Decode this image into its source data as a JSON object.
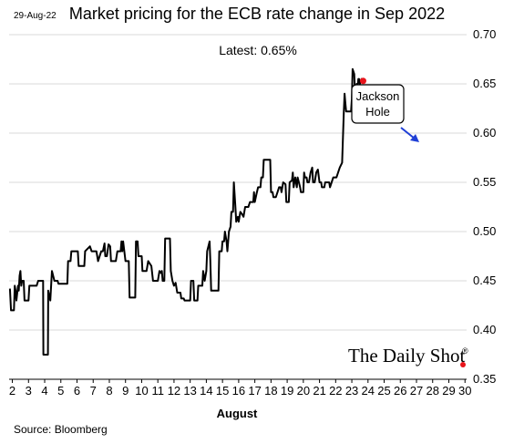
{
  "header": {
    "date": "29-Aug-22",
    "title": "Market pricing for the ECB rate change in Sep 2022"
  },
  "annotations": {
    "latest": "Latest:  0.65%",
    "callout_line1": "Jackson",
    "callout_line2": "Hole"
  },
  "branding": {
    "name": "The Daily Shot",
    "mark": "®"
  },
  "footer": {
    "source": "Source: Bloomberg"
  },
  "colors": {
    "line": "#000000",
    "marker": "#e8141b",
    "arrow": "#1f3fd6",
    "grid": "#d9d9d9"
  },
  "chart_data": {
    "type": "line",
    "xlabel": "August",
    "x_ticks": [
      2,
      3,
      4,
      5,
      6,
      7,
      8,
      9,
      10,
      11,
      12,
      13,
      14,
      15,
      16,
      17,
      18,
      19,
      20,
      21,
      22,
      23,
      24,
      25,
      26,
      27,
      28,
      29,
      30
    ],
    "xlim": [
      1.8,
      30.1
    ],
    "y_ticks": [
      0.35,
      0.4,
      0.45,
      0.5,
      0.55,
      0.6,
      0.65,
      0.7
    ],
    "ylim": [
      0.35,
      0.7
    ],
    "y_axis_side": "right",
    "grid": "horizontal",
    "series": [
      {
        "points": [
          [
            1.85,
            0.442
          ],
          [
            1.92,
            0.42
          ],
          [
            2.1,
            0.42
          ],
          [
            2.15,
            0.445
          ],
          [
            2.2,
            0.44
          ],
          [
            2.25,
            0.43
          ],
          [
            2.35,
            0.445
          ],
          [
            2.4,
            0.44
          ],
          [
            2.45,
            0.455
          ],
          [
            2.5,
            0.46
          ],
          [
            2.55,
            0.445
          ],
          [
            2.6,
            0.45
          ],
          [
            2.7,
            0.45
          ],
          [
            2.75,
            0.43
          ],
          [
            3.0,
            0.43
          ],
          [
            3.05,
            0.445
          ],
          [
            3.5,
            0.445
          ],
          [
            3.6,
            0.45
          ],
          [
            3.9,
            0.45
          ],
          [
            3.92,
            0.375
          ],
          [
            4.2,
            0.375
          ],
          [
            4.22,
            0.44
          ],
          [
            4.35,
            0.43
          ],
          [
            4.45,
            0.46
          ],
          [
            4.6,
            0.45
          ],
          [
            4.8,
            0.45
          ],
          [
            4.85,
            0.447
          ],
          [
            5.4,
            0.447
          ],
          [
            5.45,
            0.47
          ],
          [
            5.6,
            0.47
          ],
          [
            5.65,
            0.48
          ],
          [
            6.05,
            0.48
          ],
          [
            6.1,
            0.465
          ],
          [
            6.45,
            0.465
          ],
          [
            6.5,
            0.48
          ],
          [
            6.8,
            0.485
          ],
          [
            6.9,
            0.48
          ],
          [
            7.2,
            0.48
          ],
          [
            7.3,
            0.47
          ],
          [
            7.5,
            0.48
          ],
          [
            7.6,
            0.48
          ],
          [
            7.7,
            0.488
          ],
          [
            7.75,
            0.475
          ],
          [
            7.85,
            0.475
          ],
          [
            7.95,
            0.487
          ],
          [
            8.05,
            0.485
          ],
          [
            8.1,
            0.47
          ],
          [
            8.4,
            0.47
          ],
          [
            8.5,
            0.48
          ],
          [
            8.7,
            0.48
          ],
          [
            8.75,
            0.49
          ],
          [
            8.8,
            0.48
          ],
          [
            8.85,
            0.49
          ],
          [
            9.0,
            0.47
          ],
          [
            9.2,
            0.47
          ],
          [
            9.25,
            0.433
          ],
          [
            9.6,
            0.433
          ],
          [
            9.65,
            0.49
          ],
          [
            9.75,
            0.49
          ],
          [
            9.8,
            0.475
          ],
          [
            10.0,
            0.475
          ],
          [
            10.05,
            0.46
          ],
          [
            10.3,
            0.46
          ],
          [
            10.4,
            0.47
          ],
          [
            10.6,
            0.465
          ],
          [
            10.7,
            0.45
          ],
          [
            11.0,
            0.45
          ],
          [
            11.1,
            0.46
          ],
          [
            11.2,
            0.458
          ],
          [
            11.25,
            0.46
          ],
          [
            11.3,
            0.45
          ],
          [
            11.4,
            0.45
          ],
          [
            11.45,
            0.493
          ],
          [
            11.75,
            0.493
          ],
          [
            11.8,
            0.46
          ],
          [
            11.9,
            0.45
          ],
          [
            12.0,
            0.445
          ],
          [
            12.1,
            0.448
          ],
          [
            12.2,
            0.438
          ],
          [
            12.4,
            0.438
          ],
          [
            12.45,
            0.432
          ],
          [
            12.6,
            0.432
          ],
          [
            12.65,
            0.43
          ],
          [
            13.0,
            0.43
          ],
          [
            13.05,
            0.45
          ],
          [
            13.2,
            0.45
          ],
          [
            13.25,
            0.43
          ],
          [
            13.45,
            0.43
          ],
          [
            13.5,
            0.445
          ],
          [
            13.75,
            0.445
          ],
          [
            13.8,
            0.46
          ],
          [
            13.9,
            0.45
          ],
          [
            14.0,
            0.46
          ],
          [
            14.05,
            0.48
          ],
          [
            14.2,
            0.49
          ],
          [
            14.25,
            0.47
          ],
          [
            14.3,
            0.44
          ],
          [
            14.75,
            0.44
          ],
          [
            14.8,
            0.48
          ],
          [
            14.95,
            0.48
          ],
          [
            15.0,
            0.49
          ],
          [
            15.1,
            0.49
          ],
          [
            15.15,
            0.5
          ],
          [
            15.25,
            0.49
          ],
          [
            15.3,
            0.48
          ],
          [
            15.4,
            0.5
          ],
          [
            15.5,
            0.505
          ],
          [
            15.55,
            0.52
          ],
          [
            15.65,
            0.52
          ],
          [
            15.7,
            0.55
          ],
          [
            15.8,
            0.525
          ],
          [
            15.85,
            0.51
          ],
          [
            15.95,
            0.515
          ],
          [
            16.0,
            0.51
          ],
          [
            16.1,
            0.52
          ],
          [
            16.2,
            0.518
          ],
          [
            16.3,
            0.515
          ],
          [
            16.4,
            0.525
          ],
          [
            16.6,
            0.525
          ],
          [
            16.7,
            0.53
          ],
          [
            16.9,
            0.53
          ],
          [
            16.95,
            0.54
          ],
          [
            17.0,
            0.53
          ],
          [
            17.1,
            0.538
          ],
          [
            17.2,
            0.545
          ],
          [
            17.35,
            0.545
          ],
          [
            17.4,
            0.555
          ],
          [
            17.5,
            0.555
          ],
          [
            17.55,
            0.573
          ],
          [
            17.95,
            0.573
          ],
          [
            18.0,
            0.54
          ],
          [
            18.1,
            0.54
          ],
          [
            18.15,
            0.535
          ],
          [
            18.3,
            0.535
          ],
          [
            18.4,
            0.54
          ],
          [
            18.5,
            0.545
          ],
          [
            18.6,
            0.545
          ],
          [
            18.65,
            0.54
          ],
          [
            18.75,
            0.55
          ],
          [
            18.9,
            0.548
          ],
          [
            18.95,
            0.53
          ],
          [
            19.1,
            0.53
          ],
          [
            19.15,
            0.55
          ],
          [
            19.3,
            0.552
          ],
          [
            19.35,
            0.56
          ],
          [
            19.4,
            0.545
          ],
          [
            19.5,
            0.555
          ],
          [
            19.6,
            0.545
          ],
          [
            19.65,
            0.555
          ],
          [
            19.8,
            0.545
          ],
          [
            19.85,
            0.54
          ],
          [
            20.0,
            0.54
          ],
          [
            20.05,
            0.56
          ],
          [
            20.1,
            0.555
          ],
          [
            20.2,
            0.555
          ],
          [
            20.25,
            0.55
          ],
          [
            20.35,
            0.55
          ],
          [
            20.45,
            0.56
          ],
          [
            20.55,
            0.565
          ],
          [
            20.6,
            0.55
          ],
          [
            20.7,
            0.55
          ],
          [
            20.8,
            0.56
          ],
          [
            20.9,
            0.563
          ],
          [
            21.0,
            0.55
          ],
          [
            21.1,
            0.55
          ],
          [
            21.15,
            0.545
          ],
          [
            21.3,
            0.545
          ],
          [
            21.35,
            0.55
          ],
          [
            21.6,
            0.55
          ],
          [
            21.65,
            0.545
          ],
          [
            21.75,
            0.55
          ],
          [
            21.85,
            0.555
          ],
          [
            22.05,
            0.555
          ],
          [
            22.15,
            0.56
          ],
          [
            22.25,
            0.565
          ],
          [
            22.4,
            0.57
          ],
          [
            22.5,
            0.62
          ],
          [
            22.55,
            0.64
          ],
          [
            22.6,
            0.63
          ],
          [
            22.65,
            0.622
          ],
          [
            22.75,
            0.622
          ],
          [
            22.95,
            0.622
          ],
          [
            23.0,
            0.635
          ],
          [
            23.05,
            0.665
          ],
          [
            23.15,
            0.66
          ],
          [
            23.2,
            0.64
          ],
          [
            23.25,
            0.63
          ],
          [
            23.3,
            0.65
          ],
          [
            23.35,
            0.645
          ],
          [
            23.4,
            0.655
          ],
          [
            23.45,
            0.655
          ],
          [
            23.5,
            0.65
          ],
          [
            23.6,
            0.655
          ],
          [
            23.7,
            0.653
          ]
        ]
      }
    ],
    "latest_marker": [
      23.7,
      0.653
    ]
  }
}
